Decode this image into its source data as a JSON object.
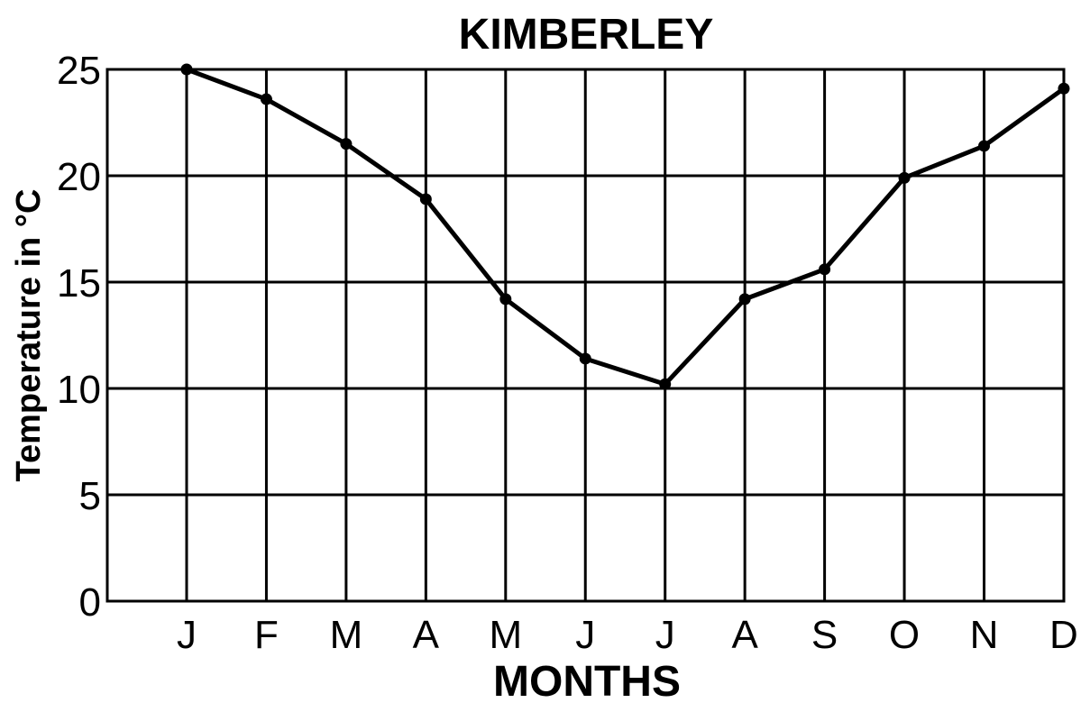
{
  "chart_data": {
    "type": "line",
    "title": "KIMBERLEY",
    "xlabel": "MONTHS",
    "ylabel": "Temperature in °C",
    "categories": [
      "J",
      "F",
      "M",
      "A",
      "M",
      "J",
      "J",
      "A",
      "S",
      "O",
      "N",
      "D"
    ],
    "series": [
      {
        "values": [
          25.0,
          23.6,
          21.5,
          18.9,
          14.2,
          11.4,
          10.2,
          14.2,
          15.6,
          19.9,
          21.4,
          24.1
        ]
      }
    ],
    "ylim": [
      0,
      25
    ],
    "yticks": [
      0,
      5,
      10,
      15,
      20,
      25
    ],
    "grid": true,
    "line_color": "#000000"
  }
}
